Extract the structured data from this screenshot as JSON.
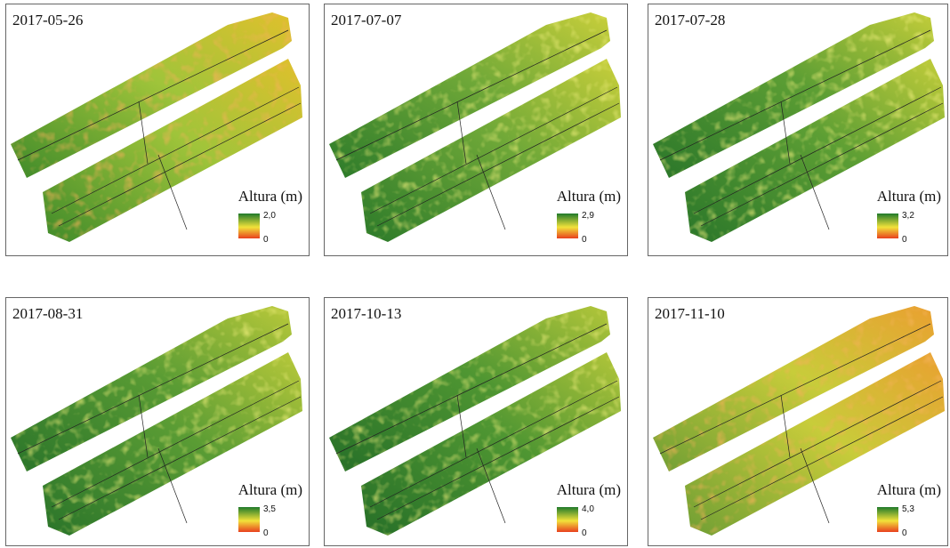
{
  "panels": [
    {
      "date": "2017-05-26",
      "legend_title": "Altura (m)",
      "legend_max": "2,0",
      "legend_min": "0"
    },
    {
      "date": "2017-07-07",
      "legend_title": "Altura (m)",
      "legend_max": "2,9",
      "legend_min": "0"
    },
    {
      "date": "2017-07-28",
      "legend_title": "Altura (m)",
      "legend_max": "3,2",
      "legend_min": "0"
    },
    {
      "date": "2017-08-31",
      "legend_title": "Altura (m)",
      "legend_max": "3,5",
      "legend_min": "0"
    },
    {
      "date": "2017-10-13",
      "legend_title": "Altura (m)",
      "legend_max": "4,0",
      "legend_min": "0"
    },
    {
      "date": "2017-11-10",
      "legend_title": "Altura (m)",
      "legend_max": "5,3",
      "legend_min": "0"
    }
  ]
}
